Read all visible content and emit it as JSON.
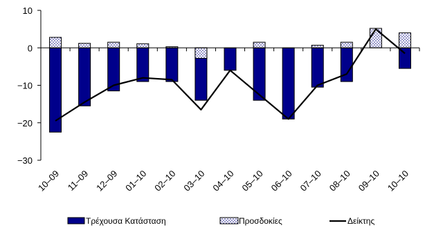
{
  "chart_data": {
    "type": "bar",
    "stacked": true,
    "categories": [
      "10–09",
      "11–09",
      "12–09",
      "01–10",
      "02–10",
      "03–10",
      "04–10",
      "05–10",
      "06–10",
      "07–10",
      "08–10",
      "09–10",
      "10–10"
    ],
    "series": [
      {
        "name": "Τρέχουσα Κατάσταση",
        "kind": "bar",
        "color": "#00008b",
        "values": [
          -22.5,
          -15.5,
          -11.5,
          -9.0,
          -9.0,
          -14.0,
          -6.0,
          -14.0,
          -19.0,
          -10.5,
          -9.0,
          0.0,
          -5.5
        ]
      },
      {
        "name": "Προσδοκίες",
        "kind": "bar",
        "pattern": "dotted",
        "values": [
          2.8,
          1.2,
          1.5,
          1.1,
          0.3,
          -2.8,
          0.0,
          1.5,
          0.0,
          0.7,
          1.5,
          5.2,
          4.0
        ]
      },
      {
        "name": "Δείκτης",
        "kind": "line",
        "color": "#000000",
        "values": [
          -19.5,
          -14.5,
          -10.0,
          -8.0,
          -8.5,
          -16.5,
          -6.0,
          -12.5,
          -19.0,
          -10.0,
          -7.0,
          5.0,
          -1.5
        ]
      }
    ],
    "y_ticks": [
      10,
      0,
      -10,
      -20,
      -30
    ],
    "ylim": [
      -30,
      10
    ],
    "grid": false,
    "legend_position": "bottom"
  }
}
